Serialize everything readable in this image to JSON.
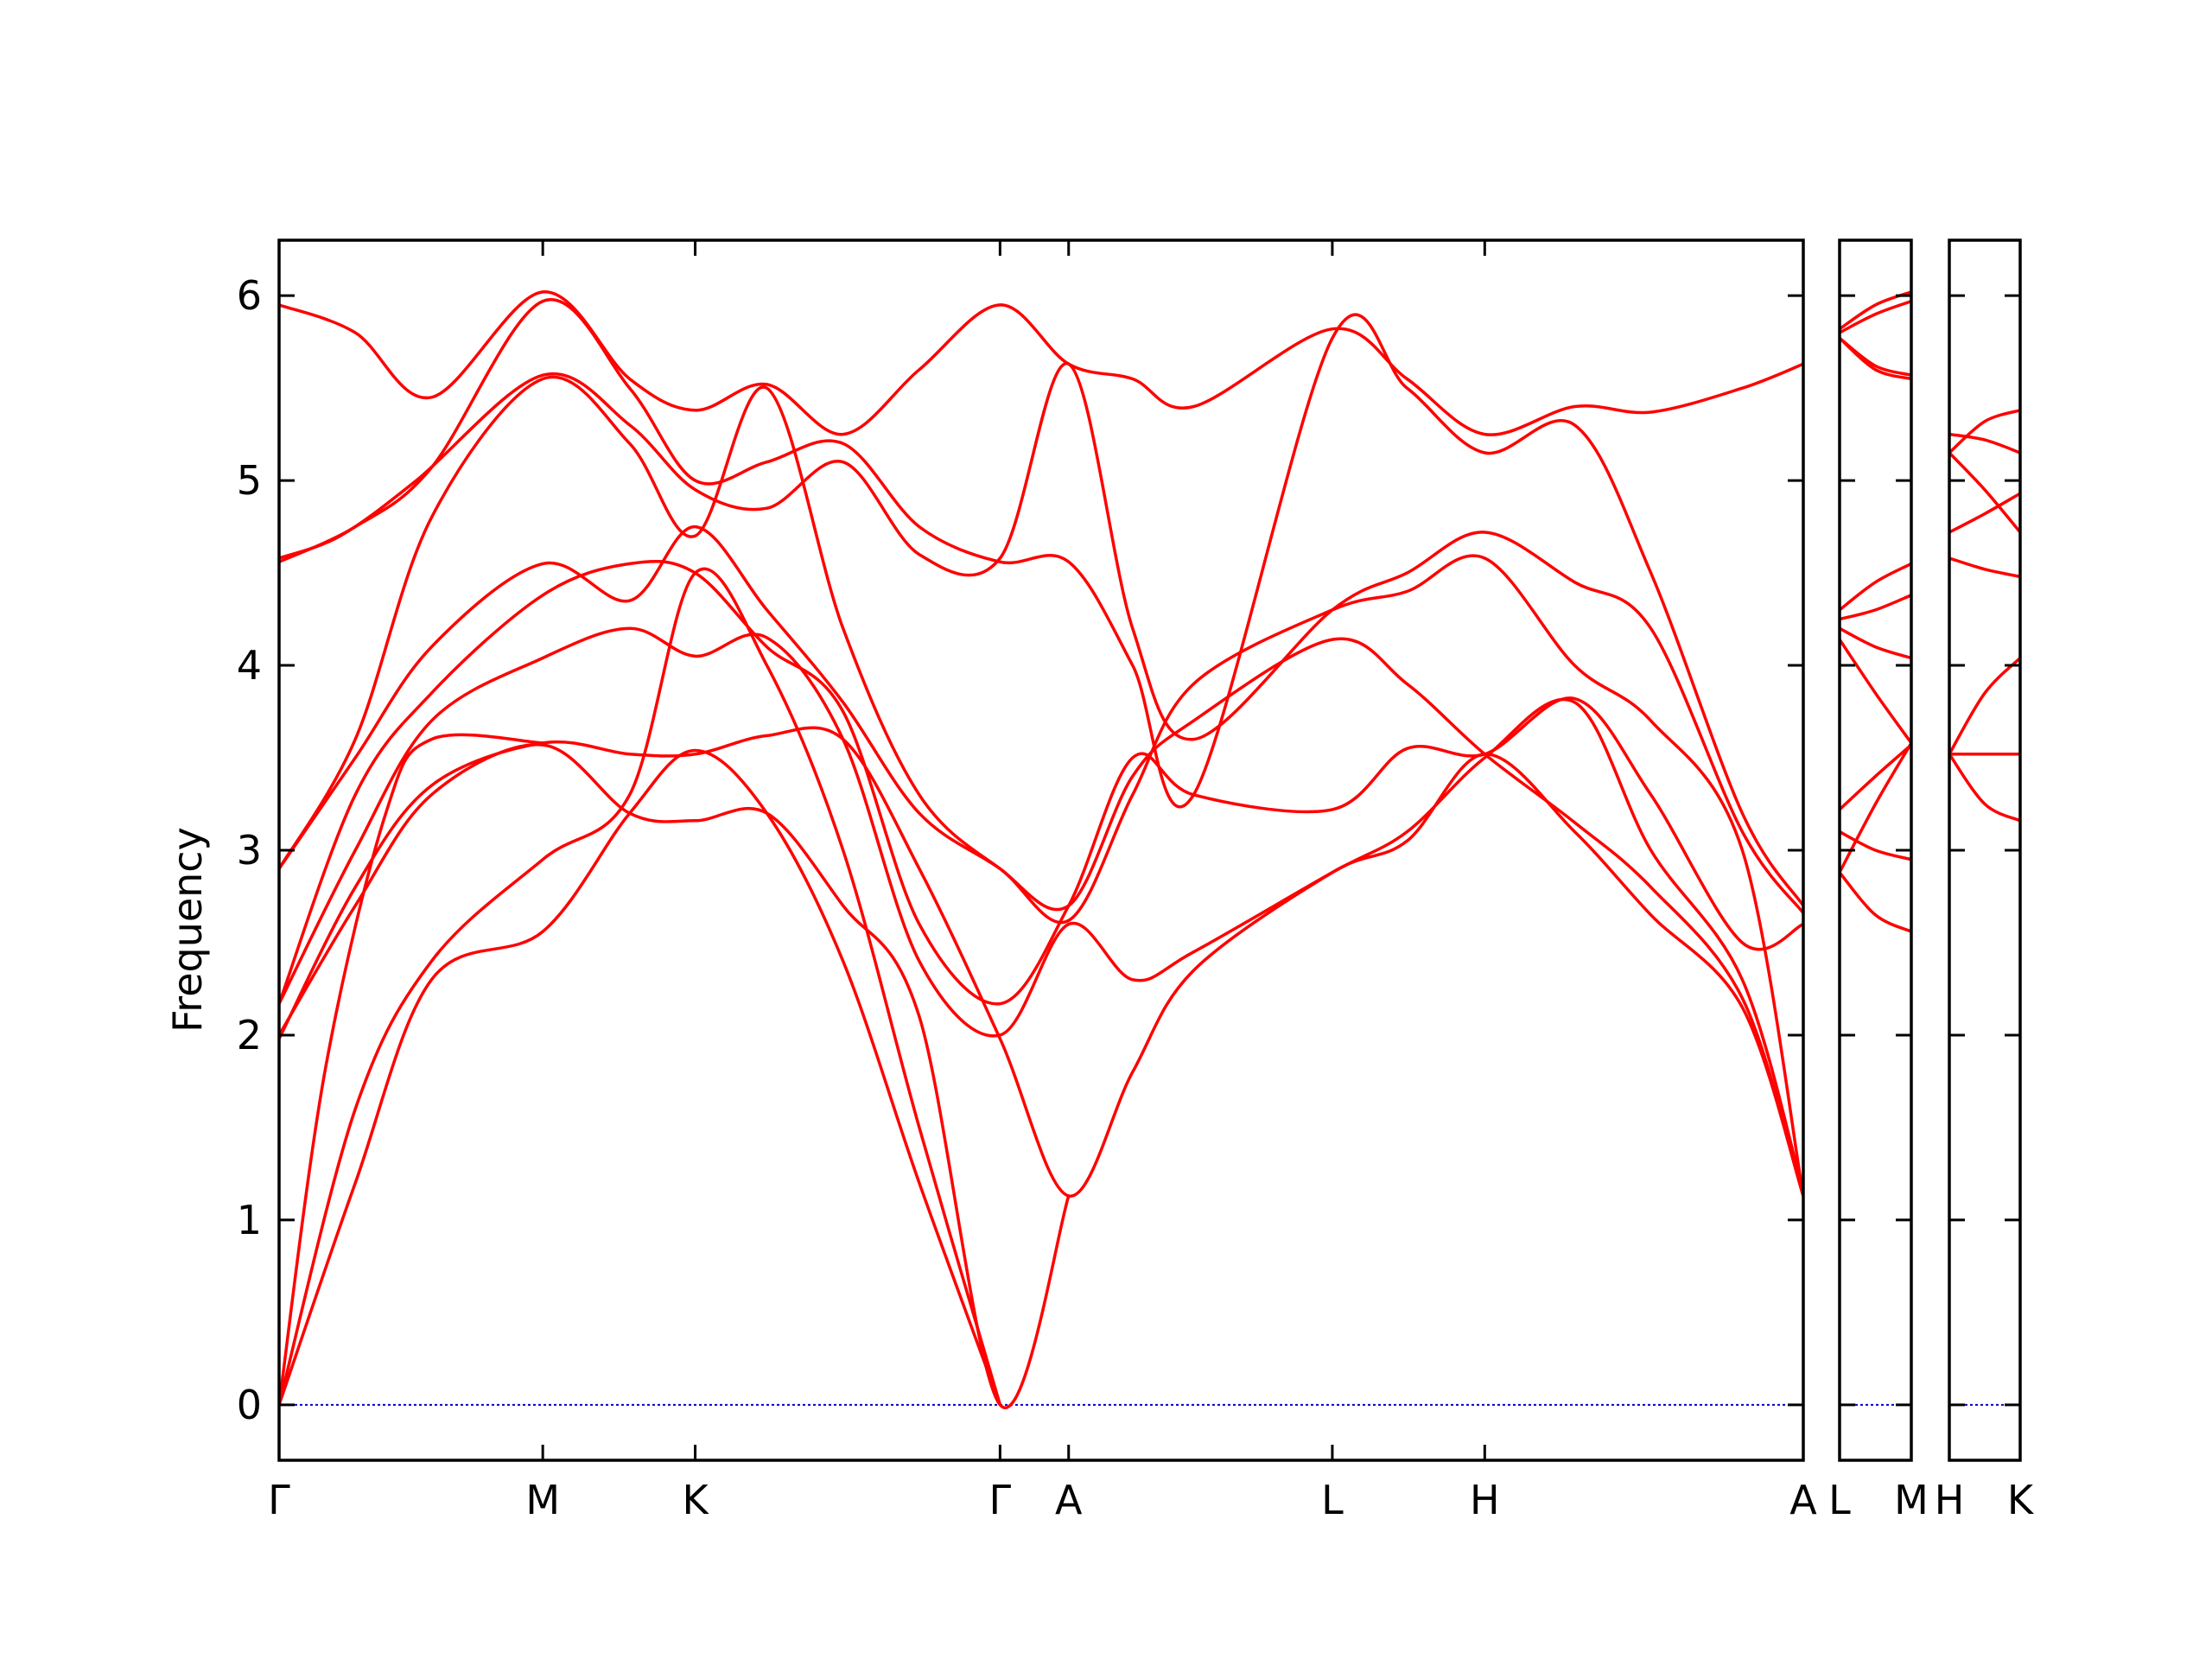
{
  "chart_data": {
    "type": "line",
    "title": "",
    "xlabel": "",
    "ylabel": "Frequency",
    "ylim": [
      -0.3,
      6.3
    ],
    "yticks": [
      0,
      1,
      2,
      3,
      4,
      5,
      6
    ],
    "ytick_labels": [
      "0",
      "1",
      "2",
      "3",
      "4",
      "5",
      "6"
    ],
    "grid": false,
    "colors": {
      "bands": "#ff0000",
      "zero_line": "#0000cc",
      "frame": "#000000"
    },
    "panels": [
      {
        "xlim": [
          0,
          10
        ],
        "ticks": [
          {
            "x": 0,
            "label": "Γ"
          },
          {
            "x": 1.73,
            "label": "M"
          },
          {
            "x": 2.73,
            "label": "K"
          },
          {
            "x": 4.73,
            "label": "Γ"
          },
          {
            "x": 5.18,
            "label": "A"
          },
          {
            "x": 6.91,
            "label": "L"
          },
          {
            "x": 7.91,
            "label": "H"
          },
          {
            "x": 10,
            "label": "A"
          }
        ],
        "series": [
          {
            "x": [
              0,
              0.5,
              1.0,
              1.73,
              2.3,
              2.73,
              3.2,
              3.7,
              4.2,
              4.73,
              5.18,
              5.6,
              6.0,
              6.91,
              7.4,
              7.91,
              8.5,
              9.0,
              9.6,
              10
            ],
            "y": [
              5.95,
              5.8,
              5.45,
              6.02,
              5.55,
              5.38,
              5.52,
              5.25,
              5.6,
              5.95,
              5.63,
              5.55,
              5.4,
              5.82,
              5.55,
              5.25,
              5.4,
              5.37,
              5.5,
              5.63
            ]
          },
          {
            "x": [
              0,
              0.5,
              1.0,
              1.73,
              2.3,
              2.73,
              3.2,
              3.7,
              4.2,
              4.73,
              5.18,
              5.6,
              6.0,
              6.91,
              7.4,
              7.91,
              8.5,
              9.0,
              9.6,
              10
            ],
            "y": [
              4.56,
              4.75,
              5.07,
              5.97,
              5.5,
              5.0,
              5.1,
              5.2,
              4.75,
              4.56,
              4.56,
              4.0,
              3.3,
              5.77,
              5.5,
              5.15,
              5.3,
              4.5,
              3.2,
              2.7
            ]
          },
          {
            "x": [
              0,
              0.4,
              0.9,
              1.73,
              2.3,
              2.73,
              3.2,
              3.7,
              4.2,
              4.73,
              5.18,
              5.6,
              6.0,
              6.91,
              7.4,
              7.91,
              8.5,
              9.0,
              9.6,
              10
            ],
            "y": [
              4.58,
              4.7,
              5.0,
              5.57,
              5.3,
              4.95,
              4.85,
              5.1,
              4.6,
              4.58,
              5.63,
              4.2,
              3.6,
              4.3,
              4.5,
              4.72,
              4.45,
              4.2,
              3.1,
              2.66
            ]
          },
          {
            "x": [
              0,
              0.5,
              1.0,
              1.73,
              2.3,
              2.73,
              3.2,
              3.7,
              4.2,
              4.73,
              5.18,
              5.6,
              6.0,
              6.91,
              7.4,
              7.91,
              8.5,
              9.0,
              9.6,
              10
            ],
            "y": [
              2.9,
              3.6,
              4.8,
              5.55,
              5.2,
              4.7,
              5.5,
              4.2,
              3.3,
              2.9,
              2.7,
              3.4,
              3.7,
              4.14,
              3.9,
              3.52,
              3.15,
              2.8,
              2.2,
              1.13
            ]
          },
          {
            "x": [
              0,
              0.5,
              1.0,
              1.73,
              2.3,
              2.73,
              3.2,
              3.7,
              4.2,
              4.73,
              5.18,
              5.6,
              6.0,
              6.91,
              7.4,
              7.91,
              8.5,
              9.0,
              9.6,
              10
            ],
            "y": [
              2.9,
              3.5,
              4.1,
              4.55,
              4.35,
              4.75,
              4.3,
              3.8,
              3.2,
              2.9,
              2.62,
              3.3,
              3.9,
              4.3,
              4.4,
              4.58,
              4.0,
              3.7,
              3.0,
              1.13
            ]
          },
          {
            "x": [
              0,
              0.5,
              1.0,
              1.73,
              2.3,
              2.73,
              3.2,
              3.7,
              4.2,
              4.73,
              5.18,
              5.6,
              6.0,
              6.91,
              7.4,
              7.91,
              8.5,
              9.0,
              9.6,
              10
            ],
            "y": [
              2.17,
              3.3,
              3.85,
              4.38,
              4.55,
              4.5,
              4.1,
              3.75,
              2.6,
              2.17,
              2.7,
              3.5,
              3.3,
              3.22,
              3.55,
              3.52,
              3.82,
              3.3,
              2.5,
              2.6
            ]
          },
          {
            "x": [
              0,
              0.5,
              1.0,
              1.73,
              2.3,
              2.73,
              3.2,
              3.7,
              4.2,
              4.73,
              5.18,
              5.6,
              6.0,
              6.91,
              7.4,
              7.91,
              8.5,
              9.0,
              9.6,
              10
            ],
            "y": [
              2.17,
              3.0,
              3.7,
              4.04,
              4.2,
              4.05,
              4.15,
              3.6,
              2.4,
              2.0,
              2.6,
              2.3,
              2.45,
              2.88,
              3.1,
              3.5,
              3.8,
              3.0,
              2.3,
              1.15
            ]
          },
          {
            "x": [
              0,
              0.5,
              1.0,
              1.73,
              2.3,
              2.73,
              3.2,
              3.7,
              4.2,
              4.73,
              5.18,
              5.6,
              6.0,
              6.91,
              7.4,
              7.91,
              8.5,
              9.0,
              9.6,
              10
            ],
            "y": [
              1.98,
              2.8,
              3.35,
              3.58,
              3.52,
              3.52,
              3.62,
              3.6,
              2.9,
              1.98,
              1.13,
              1.8,
              2.35,
              2.88,
              3.05,
              3.52,
              3.1,
              2.65,
              2.15,
              1.13
            ]
          },
          {
            "x": [
              0,
              0.5,
              1.0,
              1.73,
              2.3,
              2.73,
              3.2,
              3.7,
              4.2,
              4.73,
              5.18
            ],
            "y": [
              2.0,
              2.7,
              3.3,
              3.57,
              3.2,
              3.16,
              3.2,
              2.7,
              2.1,
              0,
              1.13
            ]
          },
          {
            "x": [
              0,
              0.5,
              1.0,
              1.73,
              2.3,
              2.73,
              3.2,
              3.7,
              4.2,
              4.73
            ],
            "y": [
              0,
              1.6,
              2.4,
              2.95,
              3.3,
              4.5,
              4.0,
              3.0,
              1.5,
              0
            ]
          },
          {
            "x": [
              0,
              0.5,
              1.0,
              1.73,
              2.3,
              2.73,
              3.2,
              3.7,
              4.2,
              4.73
            ],
            "y": [
              0,
              1.2,
              2.3,
              2.56,
              3.2,
              3.54,
              3.2,
              2.4,
              1.2,
              0
            ]
          },
          {
            "x": [
              0,
              0.3,
              0.7,
              1.0,
              1.73
            ],
            "y": [
              0,
              1.8,
              3.2,
              3.6,
              3.58
            ]
          }
        ]
      },
      {
        "xlim": [
          0,
          1
        ],
        "ticks": [
          {
            "x": 0,
            "label": "L"
          },
          {
            "x": 1,
            "label": "M"
          }
        ],
        "series": [
          {
            "x": [
              0,
              0.5,
              1
            ],
            "y": [
              5.82,
              5.95,
              6.02
            ]
          },
          {
            "x": [
              0,
              0.5,
              1
            ],
            "y": [
              5.8,
              5.9,
              5.97
            ]
          },
          {
            "x": [
              0,
              0.5,
              1
            ],
            "y": [
              5.77,
              5.62,
              5.57
            ]
          },
          {
            "x": [
              0,
              0.5,
              1
            ],
            "y": [
              5.77,
              5.6,
              5.55
            ]
          },
          {
            "x": [
              0,
              0.5,
              1
            ],
            "y": [
              4.3,
              4.45,
              4.55
            ]
          },
          {
            "x": [
              0,
              0.5,
              1
            ],
            "y": [
              4.25,
              4.3,
              4.38
            ]
          },
          {
            "x": [
              0,
              0.5,
              1
            ],
            "y": [
              4.2,
              4.1,
              4.04
            ]
          },
          {
            "x": [
              0,
              0.5,
              1
            ],
            "y": [
              4.14,
              3.85,
              3.58
            ]
          },
          {
            "x": [
              0,
              0.5,
              1
            ],
            "y": [
              3.22,
              3.4,
              3.57
            ]
          },
          {
            "x": [
              0,
              0.5,
              1
            ],
            "y": [
              3.1,
              3.0,
              2.95
            ]
          },
          {
            "x": [
              0,
              0.5,
              1
            ],
            "y": [
              2.88,
              2.65,
              2.56
            ]
          },
          {
            "x": [
              0,
              0.5,
              1
            ],
            "y": [
              2.88,
              3.25,
              3.58
            ]
          }
        ]
      },
      {
        "xlim": [
          0,
          1
        ],
        "ticks": [
          {
            "x": 0,
            "label": "H"
          },
          {
            "x": 1,
            "label": "K"
          }
        ],
        "series": [
          {
            "x": [
              0,
              0.5,
              1
            ],
            "y": [
              5.25,
              5.22,
              5.15
            ]
          },
          {
            "x": [
              0,
              0.5,
              1
            ],
            "y": [
              5.15,
              5.32,
              5.38
            ]
          },
          {
            "x": [
              0,
              0.5,
              1
            ],
            "y": [
              5.15,
              4.95,
              4.72
            ]
          },
          {
            "x": [
              0,
              0.5,
              1
            ],
            "y": [
              4.72,
              4.82,
              4.93
            ]
          },
          {
            "x": [
              0,
              0.5,
              1
            ],
            "y": [
              4.58,
              4.52,
              4.48
            ]
          },
          {
            "x": [
              0,
              0.5,
              1
            ],
            "y": [
              3.52,
              3.85,
              4.04
            ]
          },
          {
            "x": [
              0,
              0.5,
              1
            ],
            "y": [
              3.52,
              3.52,
              3.52
            ]
          },
          {
            "x": [
              0,
              0.5,
              1
            ],
            "y": [
              3.52,
              3.25,
              3.16
            ]
          }
        ]
      }
    ]
  }
}
